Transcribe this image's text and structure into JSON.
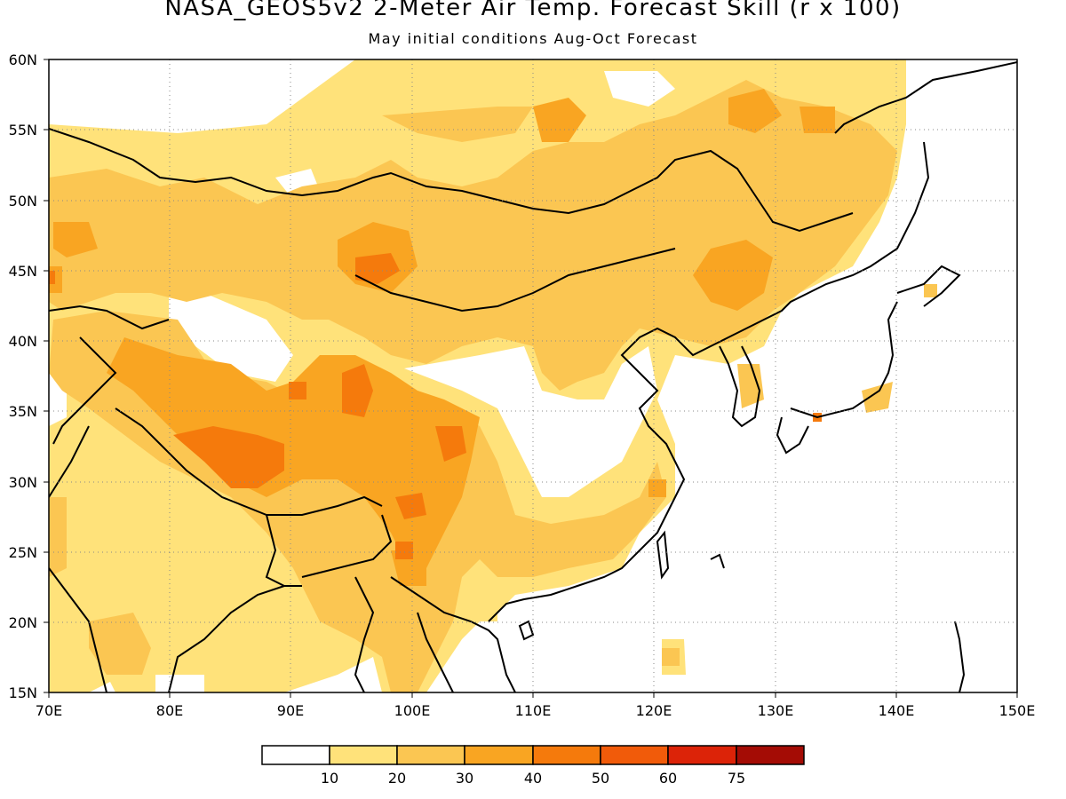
{
  "title": "NASA_GEOS5v2 2-Meter Air Temp. Forecast Skill (r x 100)",
  "subtitle": "May initial conditions  Aug-Oct Forecast",
  "map": {
    "lon_range": [
      70,
      150
    ],
    "lat_range": [
      15,
      60
    ],
    "lon_ticks": [
      "70E",
      "80E",
      "90E",
      "100E",
      "110E",
      "120E",
      "130E",
      "140E",
      "150E"
    ],
    "lat_ticks": [
      "60N",
      "55N",
      "50N",
      "45N",
      "40N",
      "35N",
      "30N",
      "25N",
      "20N",
      "15N"
    ],
    "grid": "dotted, every 10° longitude and 5° latitude",
    "field": "forecast skill, correlation r x 100, shaded contours"
  },
  "colorbar": {
    "levels": [
      "10",
      "20",
      "30",
      "40",
      "50",
      "60",
      "75"
    ],
    "colors": [
      "#ffffff",
      "#ffe27a",
      "#fbc652",
      "#f9a522",
      "#f57a0c",
      "#f15b0a",
      "#dc2308",
      "#a40c05"
    ]
  },
  "colors": {
    "c10": "#ffe27a",
    "c20": "#fbc652",
    "c30": "#f9a522",
    "c40": "#f57a0c",
    "c50": "#f15b0a",
    "c60": "#dc2308",
    "c75": "#a40c05"
  }
}
